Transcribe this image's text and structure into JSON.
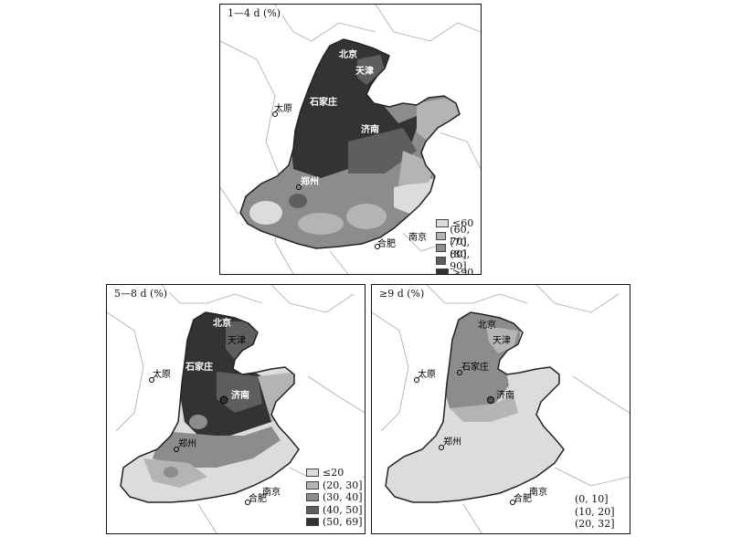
{
  "panels": [
    {
      "title": "1—4 d (%)",
      "legend": [
        {
          "label": "≤60",
          "color": "#dcdcdc"
        },
        {
          "label": "(60, 70]",
          "color": "#b4b4b4"
        },
        {
          "label": "(70, 80]",
          "color": "#8c8c8c"
        },
        {
          "label": "(80, 90]",
          "color": "#5e5e5e"
        },
        {
          "label": ">90",
          "color": "#333333"
        }
      ]
    },
    {
      "title": "5—8 d (%)",
      "legend": [
        {
          "label": "≤20",
          "color": "#dcdcdc"
        },
        {
          "label": "(20, 30]",
          "color": "#b4b4b4"
        },
        {
          "label": "(30, 40]",
          "color": "#8c8c8c"
        },
        {
          "label": "(40, 50]",
          "color": "#5e5e5e"
        },
        {
          "label": "(50, 69]",
          "color": "#333333"
        }
      ]
    },
    {
      "title": "≥9 d (%)",
      "legend": [
        {
          "label": "(0, 10]",
          "color": "#dcdcdc"
        },
        {
          "label": "(10, 20]",
          "color": "#b4b4b4"
        },
        {
          "label": "(20, 32]",
          "color": "#8c8c8c"
        }
      ]
    }
  ],
  "cities": {
    "beijing": "北京",
    "tianjin": "天津",
    "shijiazhuang": "石家庄",
    "taiyuan": "太原",
    "jinan": "济南",
    "zhengzhou": "郑州",
    "nanjing": "南京",
    "hefei": "合肥"
  }
}
